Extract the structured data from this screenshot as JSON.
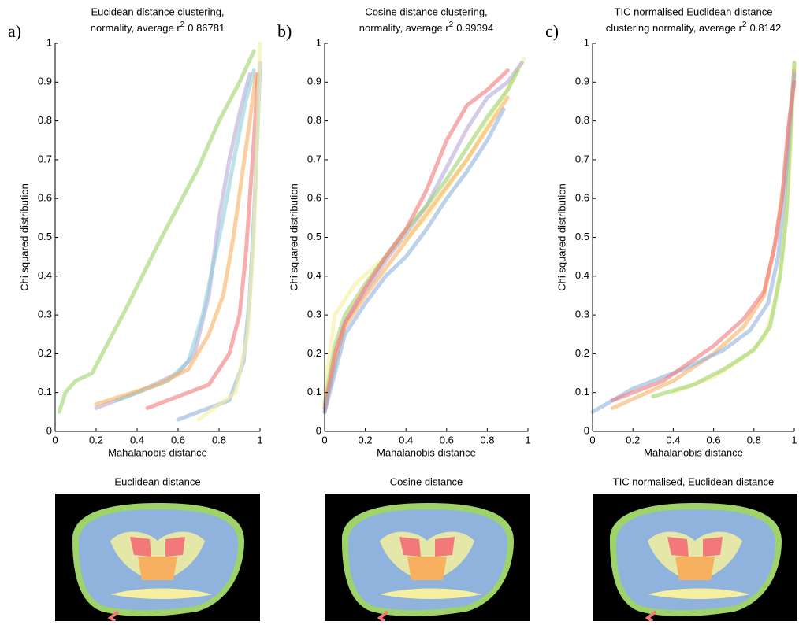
{
  "chart_data": [
    {
      "type": "line",
      "panel": "a)",
      "title": {
        "line1": "Eucidean distance clustering,",
        "line2": "normality, average r",
        "sup": "2",
        "tail": "0.86781"
      },
      "xlabel": "Mahalanobis distance",
      "ylabel": "Chi squared distribution",
      "xlim": [
        0,
        1
      ],
      "ylim": [
        0,
        1
      ],
      "xticks": [
        0,
        0.2,
        0.4,
        0.6,
        0.8,
        1
      ],
      "yticks": [
        0,
        0.1,
        0.2,
        0.3,
        0.4,
        0.5,
        0.6,
        0.7,
        0.8,
        0.9,
        1
      ],
      "series": [
        {
          "color": "#9ed36a",
          "x": [
            0.02,
            0.05,
            0.1,
            0.18,
            0.25,
            0.35,
            0.5,
            0.6,
            0.7,
            0.8,
            0.9,
            0.97
          ],
          "values": [
            0.05,
            0.1,
            0.13,
            0.15,
            0.22,
            0.32,
            0.48,
            0.58,
            0.68,
            0.8,
            0.9,
            0.98
          ]
        },
        {
          "color": "#b5a8d8",
          "x": [
            0.2,
            0.4,
            0.6,
            0.68,
            0.75,
            0.8,
            0.85,
            0.9,
            0.95
          ],
          "values": [
            0.06,
            0.1,
            0.15,
            0.2,
            0.35,
            0.55,
            0.7,
            0.82,
            0.92
          ]
        },
        {
          "color": "#8fcfd9",
          "x": [
            0.3,
            0.55,
            0.65,
            0.72,
            0.78,
            0.82,
            0.88,
            0.93,
            0.97
          ],
          "values": [
            0.08,
            0.13,
            0.18,
            0.3,
            0.45,
            0.55,
            0.72,
            0.85,
            0.93
          ]
        },
        {
          "color": "#f7b060",
          "x": [
            0.2,
            0.5,
            0.65,
            0.75,
            0.82,
            0.87,
            0.91,
            0.95,
            0.98
          ],
          "values": [
            0.07,
            0.12,
            0.16,
            0.25,
            0.35,
            0.5,
            0.65,
            0.8,
            0.92
          ]
        },
        {
          "color": "#f2787a",
          "x": [
            0.45,
            0.75,
            0.85,
            0.9,
            0.93,
            0.95,
            0.97,
            0.99
          ],
          "values": [
            0.06,
            0.12,
            0.2,
            0.3,
            0.45,
            0.6,
            0.75,
            0.92
          ]
        },
        {
          "color": "#8fb3dc",
          "x": [
            0.6,
            0.85,
            0.92,
            0.95,
            0.97,
            0.99,
            1
          ],
          "values": [
            0.03,
            0.08,
            0.18,
            0.35,
            0.55,
            0.8,
            0.95
          ]
        },
        {
          "color": "#f5f0a0",
          "x": [
            0.7,
            0.88,
            0.94,
            0.97,
            0.99,
            1
          ],
          "values": [
            0.03,
            0.1,
            0.25,
            0.5,
            0.8,
            1
          ]
        }
      ],
      "image_title": "Euclidean distance"
    },
    {
      "type": "line",
      "panel": "b)",
      "title": {
        "line1": "Cosine distance clustering,",
        "line2": "normality, average r",
        "sup": "2",
        "tail": "0.99394"
      },
      "xlabel": "Mahalanobis distance",
      "ylabel": "Chi squared distribution",
      "xlim": [
        0,
        1
      ],
      "ylim": [
        0,
        1
      ],
      "xticks": [
        0,
        0.2,
        0.4,
        0.6,
        0.8,
        1
      ],
      "yticks": [
        0,
        0.1,
        0.2,
        0.3,
        0.4,
        0.5,
        0.6,
        0.7,
        0.8,
        0.9,
        1
      ],
      "series": [
        {
          "color": "#f5f0a0",
          "x": [
            0,
            0.05,
            0.15,
            0.3,
            0.5,
            0.7,
            0.9,
            0.98
          ],
          "values": [
            0.1,
            0.3,
            0.38,
            0.45,
            0.55,
            0.7,
            0.88,
            0.96
          ]
        },
        {
          "color": "#b5a8d8",
          "x": [
            0,
            0.1,
            0.3,
            0.5,
            0.6,
            0.7,
            0.8,
            0.9,
            0.97
          ],
          "values": [
            0.06,
            0.28,
            0.44,
            0.58,
            0.68,
            0.78,
            0.86,
            0.9,
            0.95
          ]
        },
        {
          "color": "#9ed36a",
          "x": [
            0,
            0.05,
            0.1,
            0.2,
            0.3,
            0.4,
            0.5,
            0.6,
            0.7,
            0.8,
            0.9,
            0.95
          ],
          "values": [
            0.07,
            0.22,
            0.3,
            0.38,
            0.45,
            0.52,
            0.58,
            0.65,
            0.73,
            0.81,
            0.88,
            0.93
          ]
        },
        {
          "color": "#f7b060",
          "x": [
            0,
            0.05,
            0.1,
            0.2,
            0.3,
            0.4,
            0.5,
            0.6,
            0.7,
            0.8,
            0.9
          ],
          "values": [
            0.06,
            0.18,
            0.27,
            0.35,
            0.42,
            0.49,
            0.56,
            0.63,
            0.7,
            0.78,
            0.86
          ]
        },
        {
          "color": "#f2787a",
          "x": [
            0,
            0.05,
            0.1,
            0.2,
            0.3,
            0.4,
            0.5,
            0.6,
            0.7,
            0.8,
            0.9
          ],
          "values": [
            0.05,
            0.2,
            0.28,
            0.37,
            0.45,
            0.52,
            0.62,
            0.75,
            0.84,
            0.88,
            0.93
          ]
        },
        {
          "color": "#8fb3dc",
          "x": [
            0,
            0.05,
            0.1,
            0.2,
            0.3,
            0.4,
            0.5,
            0.6,
            0.7,
            0.8,
            0.88
          ],
          "values": [
            0.05,
            0.15,
            0.25,
            0.33,
            0.4,
            0.45,
            0.52,
            0.6,
            0.67,
            0.75,
            0.83
          ]
        }
      ],
      "image_title": "Cosine distance"
    },
    {
      "type": "line",
      "panel": "c)",
      "title": {
        "line1": "TIC normalised Euclidean distance",
        "line2": "clustering normality, average r",
        "sup": "2",
        "tail": "0.8142"
      },
      "xlabel": "Mahalanobis distance",
      "ylabel": "Chi squared distribution",
      "xlim": [
        0,
        1
      ],
      "ylim": [
        0,
        1
      ],
      "xticks": [
        0,
        0.2,
        0.4,
        0.6,
        0.8,
        1
      ],
      "yticks": [
        0,
        0.1,
        0.2,
        0.3,
        0.4,
        0.5,
        0.6,
        0.7,
        0.8,
        0.9,
        1
      ],
      "series": [
        {
          "color": "#f5f0a0",
          "x": [
            0.4,
            0.6,
            0.75,
            0.85,
            0.9,
            0.94,
            0.97,
            0.99,
            1
          ],
          "values": [
            0.1,
            0.14,
            0.19,
            0.24,
            0.32,
            0.45,
            0.62,
            0.8,
            0.95
          ]
        },
        {
          "color": "#9ed36a",
          "x": [
            0.3,
            0.5,
            0.65,
            0.8,
            0.88,
            0.93,
            0.96,
            0.98,
            1
          ],
          "values": [
            0.09,
            0.12,
            0.16,
            0.21,
            0.27,
            0.4,
            0.55,
            0.75,
            0.95
          ]
        },
        {
          "color": "#f7b060",
          "x": [
            0.1,
            0.4,
            0.6,
            0.75,
            0.85,
            0.91,
            0.95,
            0.98,
            1
          ],
          "values": [
            0.06,
            0.13,
            0.2,
            0.27,
            0.35,
            0.5,
            0.65,
            0.82,
            0.93
          ]
        },
        {
          "color": "#8fb3dc",
          "x": [
            0,
            0.2,
            0.45,
            0.65,
            0.78,
            0.87,
            0.92,
            0.95,
            0.98,
            1
          ],
          "values": [
            0.05,
            0.11,
            0.16,
            0.21,
            0.26,
            0.33,
            0.45,
            0.6,
            0.8,
            0.92
          ]
        },
        {
          "color": "#f2787a",
          "x": [
            0.1,
            0.35,
            0.6,
            0.75,
            0.85,
            0.9,
            0.94,
            0.97,
            1
          ],
          "values": [
            0.08,
            0.13,
            0.22,
            0.29,
            0.36,
            0.47,
            0.6,
            0.78,
            0.9
          ]
        }
      ],
      "image_title": "TIC normalised, Euclidean distance"
    }
  ]
}
